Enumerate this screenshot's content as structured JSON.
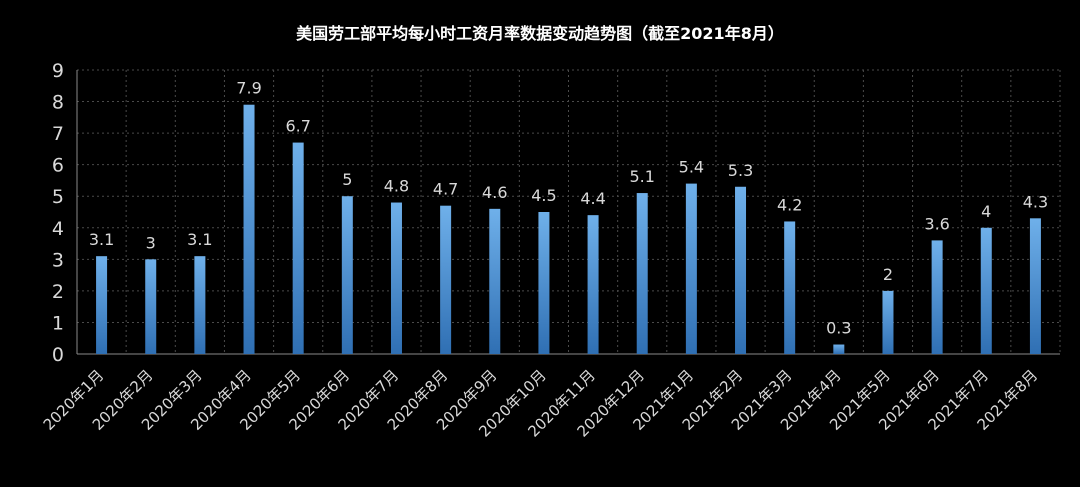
{
  "title": "美国劳工部平均每小时工资月率数据变动趋势图（截至2021年8月）",
  "colors": {
    "background": "#000000",
    "bar_top": "#6fb0ea",
    "bar_bottom": "#2f6fb3",
    "text": "#d9d9d9"
  },
  "chart_data": {
    "type": "bar",
    "title": "美国劳工部平均每小时工资月率数据变动趋势图（截至2021年8月）",
    "categories": [
      "2020年1月",
      "2020年2月",
      "2020年3月",
      "2020年4月",
      "2020年5月",
      "2020年6月",
      "2020年7月",
      "2020年8月",
      "2020年9月",
      "2020年10月",
      "2020年11月",
      "2020年12月",
      "2021年1月",
      "2021年2月",
      "2021年3月",
      "2021年4月",
      "2021年5月",
      "2021年6月",
      "2021年7月",
      "2021年8月"
    ],
    "values": [
      3.1,
      3,
      3.1,
      7.9,
      6.7,
      5,
      4.8,
      4.7,
      4.6,
      4.5,
      4.4,
      5.1,
      5.4,
      5.3,
      4.2,
      0.3,
      2,
      3.6,
      4,
      4.3
    ],
    "data_labels": [
      "3.1",
      "3",
      "3.1",
      "7.9",
      "6.7",
      "5",
      "4.8",
      "4.7",
      "4.6",
      "4.5",
      "4.4",
      "5.1",
      "5.4",
      "5.3",
      "4.2",
      "0.3",
      "2",
      "3.6",
      "4",
      "4.3"
    ],
    "ylim": [
      0,
      9
    ],
    "yticks": [
      "0",
      "1",
      "2",
      "3",
      "4",
      "5",
      "6",
      "7",
      "8",
      "9"
    ],
    "xlabel": "",
    "ylabel": "",
    "grid": true,
    "legend": "none"
  }
}
